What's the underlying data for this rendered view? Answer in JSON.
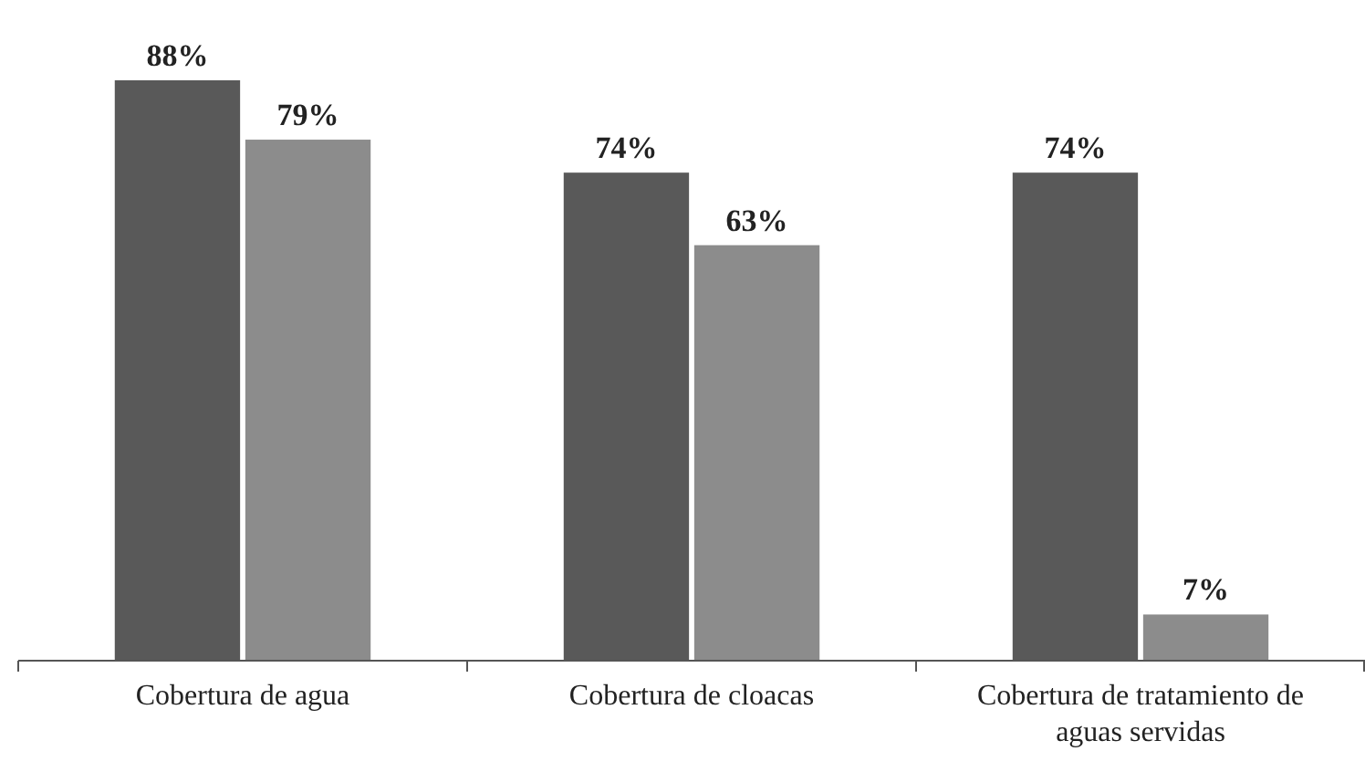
{
  "chart_data": {
    "type": "bar",
    "categories": [
      "Cobertura de agua",
      "Cobertura de cloacas",
      "Cobertura de tratamiento de aguas servidas"
    ],
    "series": [
      {
        "color": "#595959",
        "values": [
          88,
          74,
          74
        ],
        "value_labels": [
          "88%",
          "74%",
          "74%"
        ]
      },
      {
        "color": "#8c8c8c",
        "values": [
          79,
          63,
          7
        ],
        "value_labels": [
          "79%",
          "63%",
          "7%"
        ]
      }
    ]
  }
}
